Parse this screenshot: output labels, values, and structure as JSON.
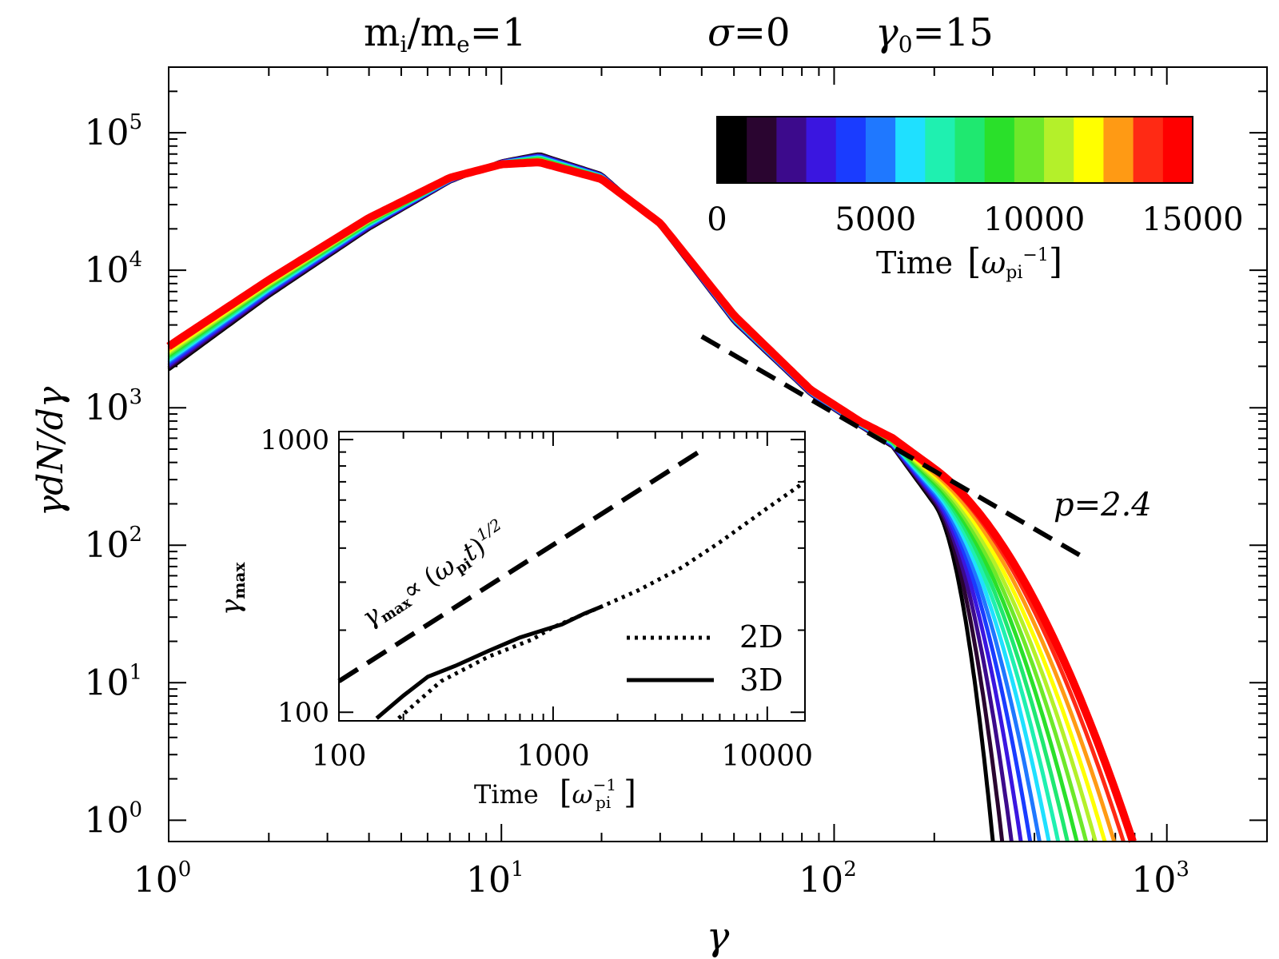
{
  "chart_data": [
    {
      "type": "line",
      "title": {
        "part1_main": "m",
        "part1_sub1": "i",
        "part1_slash": "/",
        "part1_m": "m",
        "part1_sub2": "e",
        "part1_eq": "=1",
        "part2_symbol": "σ",
        "part2_eq": "=0",
        "part3_symbol": "γ",
        "part3_sub": "0",
        "part3_eq": "=15"
      },
      "xlabel": "γ",
      "ylabel": "γdN/dγ",
      "xscale": "log",
      "yscale": "log",
      "xlim": [
        1,
        2000
      ],
      "ylim": [
        0.7,
        300000
      ],
      "xticks": [
        {
          "value": 1,
          "base": "10",
          "exp": "0"
        },
        {
          "value": 10,
          "base": "10",
          "exp": "1"
        },
        {
          "value": 100,
          "base": "10",
          "exp": "2"
        },
        {
          "value": 1000,
          "base": "10",
          "exp": "3"
        }
      ],
      "yticks": [
        {
          "value": 1,
          "base": "10",
          "exp": "0"
        },
        {
          "value": 10,
          "base": "10",
          "exp": "1"
        },
        {
          "value": 100,
          "base": "10",
          "exp": "2"
        },
        {
          "value": 1000,
          "base": "10",
          "exp": "3"
        },
        {
          "value": 10000,
          "base": "10",
          "exp": "4"
        },
        {
          "value": 100000,
          "base": "10",
          "exp": "5"
        }
      ],
      "series_times": [
        0,
        1000,
        2000,
        3000,
        4000,
        5000,
        6000,
        7000,
        8000,
        9000,
        10000,
        11000,
        12000,
        13000,
        14000,
        15000
      ],
      "series_colors": [
        "#000000",
        "#2a0530",
        "#3c0a8c",
        "#3a16e0",
        "#1a3cff",
        "#1f78ff",
        "#1fe0ff",
        "#1ff0b0",
        "#1fe870",
        "#2ae02a",
        "#6ee82a",
        "#b4f02a",
        "#ffff00",
        "#ff9a14",
        "#ff2a14",
        "#ff0000"
      ],
      "spectrum_shape": {
        "x": [
          1,
          2,
          4,
          7,
          10,
          13,
          20,
          30,
          50,
          85,
          120,
          150,
          200
        ],
        "y_first": [
          1900,
          6500,
          20000,
          44000,
          62000,
          70000,
          50000,
          21000,
          4200,
          1250,
          730,
          520,
          200
        ],
        "y_last": [
          2800,
          8500,
          24000,
          47000,
          59000,
          61000,
          46000,
          22000,
          4700,
          1350,
          790,
          600,
          360
        ]
      },
      "cutoff_end_gamma_first": 300,
      "cutoff_end_gamma_last": 790,
      "powerlaw_fit": {
        "label": "p=2.4",
        "p": 2.4,
        "x_range": [
          40,
          560
        ],
        "y_at_40": 3300
      },
      "colorbar": {
        "label_text": "Time ",
        "label_unit_open": "[",
        "label_unit_symbol": "ω",
        "label_unit_sub": "pi",
        "label_unit_sup": "−1",
        "label_unit_close": "]",
        "range": [
          0,
          15000
        ],
        "ticks": [
          "0",
          "5000",
          "10000",
          "15000"
        ]
      }
    },
    {
      "type": "line",
      "xlabel": "Time",
      "xlabel_unit_open": "[",
      "xlabel_unit_symbol": "ω",
      "xlabel_unit_sup": "−1",
      "xlabel_unit_sub": "pi",
      "xlabel_unit_close": "]",
      "ylabel_symbol": "γ",
      "ylabel_sub": "max",
      "xscale": "log",
      "yscale": "log",
      "xlim": [
        100,
        15000
      ],
      "ylim": [
        93,
        1070
      ],
      "xticks": [
        "100",
        "1000",
        "10000"
      ],
      "yticks": [
        "100",
        "1000"
      ],
      "series": [
        {
          "name": "2D",
          "style": "dotted",
          "x": [
            190,
            300,
            500,
            800,
            1000,
            1700,
            2500,
            4000,
            6000,
            10000,
            15000
          ],
          "y": [
            95,
            130,
            160,
            185,
            205,
            245,
            280,
            340,
            420,
            560,
            700
          ]
        },
        {
          "name": "3D",
          "style": "solid",
          "x": [
            150,
            200,
            260,
            350,
            500,
            700,
            900,
            1100,
            1400,
            1700
          ],
          "y": [
            95,
            115,
            135,
            148,
            168,
            188,
            200,
            210,
            230,
            245
          ]
        }
      ],
      "scaling_line": {
        "exponent": 0.5,
        "x": [
          100,
          5000
        ],
        "y": [
          130,
          920
        ]
      },
      "annotation": {
        "sym": "γ",
        "sub": "max",
        "prop": "∝ (",
        "omega": "ω",
        "omega_sub": "pi",
        "t": "t",
        "close": ")",
        "exp": "1/2"
      }
    }
  ]
}
